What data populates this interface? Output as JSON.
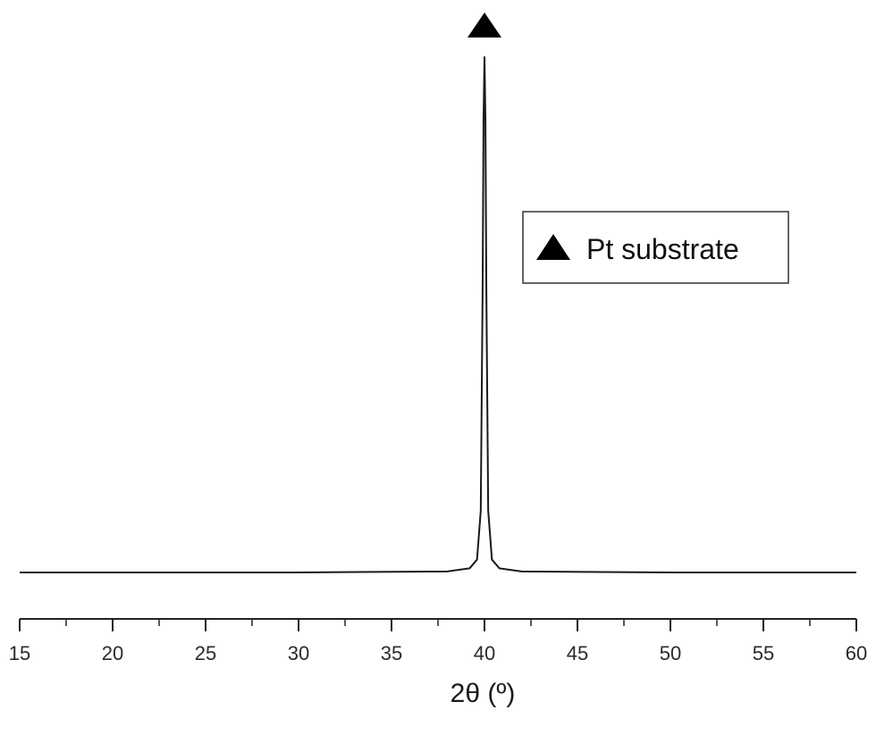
{
  "chart_data": {
    "type": "line",
    "title": "",
    "xlabel": "2θ (º)",
    "ylabel": "",
    "xlim": [
      15,
      60
    ],
    "x_ticks": [
      "15",
      "20",
      "25",
      "30",
      "35",
      "40",
      "45",
      "50",
      "55",
      "60"
    ],
    "x_minor_tick_step": 2.5,
    "y_ticks_shown": false,
    "grid": false,
    "series": [
      {
        "name": "",
        "points": [
          [
            15,
            0
          ],
          [
            30,
            0
          ],
          [
            38,
            0.2
          ],
          [
            39.2,
            0.8
          ],
          [
            39.6,
            2.5
          ],
          [
            39.8,
            12
          ],
          [
            39.9,
            55
          ],
          [
            39.95,
            88
          ],
          [
            40.0,
            100
          ],
          [
            40.05,
            88
          ],
          [
            40.1,
            55
          ],
          [
            40.2,
            12
          ],
          [
            40.4,
            2.5
          ],
          [
            40.8,
            0.8
          ],
          [
            42,
            0.2
          ],
          [
            50,
            0
          ],
          [
            60,
            0
          ]
        ]
      }
    ],
    "peak_markers": [
      {
        "x": 40.0,
        "symbol": "triangle",
        "series": "Pt substrate"
      }
    ],
    "legend": {
      "position": "upper-right",
      "entries": [
        {
          "label": "Pt substrate",
          "symbol": "triangle"
        }
      ]
    }
  }
}
